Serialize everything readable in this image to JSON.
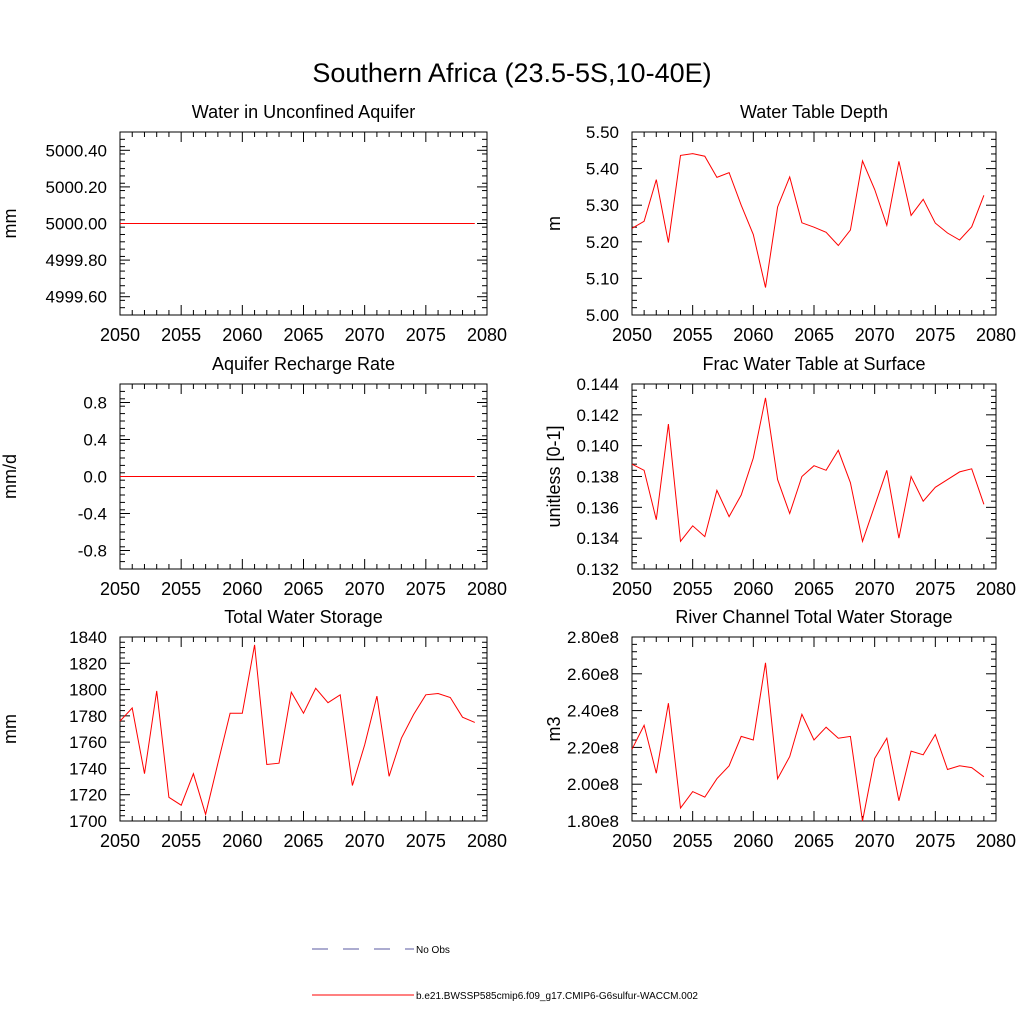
{
  "figure": {
    "title": "Southern Africa (23.5-5S,10-40E)"
  },
  "colors": {
    "model": "#ff0000",
    "obs": "#5a5aa0",
    "axis": "#000000"
  },
  "legend": {
    "placement": "bottom-center",
    "entries": [
      {
        "label": "No Obs",
        "style": "dashed",
        "color": "#5a5aa0"
      },
      {
        "label": "b.e21.BWSSP585cmip6.f09_g17.CMIP6-G6sulfur-WACCM.002",
        "style": "solid",
        "color": "#ff0000"
      }
    ]
  },
  "chart_data": [
    {
      "type": "line",
      "title": "Water in Unconfined Aquifer",
      "ylabel": "mm",
      "xlim": [
        2050,
        2080
      ],
      "ylim": [
        4999.5,
        5000.5
      ],
      "xticks": [
        2050,
        2055,
        2060,
        2065,
        2070,
        2075,
        2080
      ],
      "xtick_labels": [
        "2050",
        "2055",
        "2060",
        "2065",
        "2070",
        "2075",
        "2080"
      ],
      "yticks": [
        4999.6,
        4999.8,
        5000.0,
        5000.2,
        5000.4
      ],
      "ytick_labels": [
        "4999.60",
        "4999.80",
        "5000.00",
        "5000.20",
        "5000.40"
      ],
      "yminor": 0.04,
      "x": [
        2050,
        2051,
        2052,
        2053,
        2054,
        2055,
        2056,
        2057,
        2058,
        2059,
        2060,
        2061,
        2062,
        2063,
        2064,
        2065,
        2066,
        2067,
        2068,
        2069,
        2070,
        2071,
        2072,
        2073,
        2074,
        2075,
        2076,
        2077,
        2078,
        2079
      ],
      "values": [
        5000,
        5000,
        5000,
        5000,
        5000,
        5000,
        5000,
        5000,
        5000,
        5000,
        5000,
        5000,
        5000,
        5000,
        5000,
        5000,
        5000,
        5000,
        5000,
        5000,
        5000,
        5000,
        5000,
        5000,
        5000,
        5000,
        5000,
        5000,
        5000,
        5000
      ]
    },
    {
      "type": "line",
      "title": "Water Table Depth",
      "ylabel": "m",
      "xlim": [
        2050,
        2080
      ],
      "ylim": [
        5.0,
        5.5
      ],
      "xticks": [
        2050,
        2055,
        2060,
        2065,
        2070,
        2075,
        2080
      ],
      "xtick_labels": [
        "2050",
        "2055",
        "2060",
        "2065",
        "2070",
        "2075",
        "2080"
      ],
      "yticks": [
        5.0,
        5.1,
        5.2,
        5.3,
        5.4,
        5.5
      ],
      "ytick_labels": [
        "5.00",
        "5.10",
        "5.20",
        "5.30",
        "5.40",
        "5.50"
      ],
      "yminor": 0.02,
      "x": [
        2050,
        2051,
        2052,
        2053,
        2054,
        2055,
        2056,
        2057,
        2058,
        2059,
        2060,
        2061,
        2062,
        2063,
        2064,
        2065,
        2066,
        2067,
        2068,
        2069,
        2070,
        2071,
        2072,
        2073,
        2074,
        2075,
        2076,
        2077,
        2078,
        2079
      ],
      "values": [
        5.237,
        5.256,
        5.37,
        5.198,
        5.436,
        5.441,
        5.434,
        5.376,
        5.389,
        5.3,
        5.22,
        5.075,
        5.295,
        5.377,
        5.252,
        5.24,
        5.226,
        5.19,
        5.232,
        5.421,
        5.343,
        5.245,
        5.42,
        5.272,
        5.316,
        5.251,
        5.224,
        5.205,
        5.241,
        5.327
      ]
    },
    {
      "type": "line",
      "title": "Aquifer Recharge Rate",
      "ylabel": "mm/d",
      "xlim": [
        2050,
        2080
      ],
      "ylim": [
        -1.0,
        1.0
      ],
      "xticks": [
        2050,
        2055,
        2060,
        2065,
        2070,
        2075,
        2080
      ],
      "xtick_labels": [
        "2050",
        "2055",
        "2060",
        "2065",
        "2070",
        "2075",
        "2080"
      ],
      "yticks": [
        -0.8,
        -0.4,
        0.0,
        0.4,
        0.8
      ],
      "ytick_labels": [
        "-0.8",
        "-0.4",
        "0.0",
        "0.4",
        "0.8"
      ],
      "yminor": 0.08,
      "x": [
        2050,
        2051,
        2052,
        2053,
        2054,
        2055,
        2056,
        2057,
        2058,
        2059,
        2060,
        2061,
        2062,
        2063,
        2064,
        2065,
        2066,
        2067,
        2068,
        2069,
        2070,
        2071,
        2072,
        2073,
        2074,
        2075,
        2076,
        2077,
        2078,
        2079
      ],
      "values": [
        0,
        0,
        0,
        0,
        0,
        0,
        0,
        0,
        0,
        0,
        0,
        0,
        0,
        0,
        0,
        0,
        0,
        0,
        0,
        0,
        0,
        0,
        0,
        0,
        0,
        0,
        0,
        0,
        0,
        0
      ]
    },
    {
      "type": "line",
      "title": "Frac Water Table at Surface",
      "ylabel": "unitless [0-1]",
      "xlim": [
        2050,
        2080
      ],
      "ylim": [
        0.132,
        0.144
      ],
      "xticks": [
        2050,
        2055,
        2060,
        2065,
        2070,
        2075,
        2080
      ],
      "xtick_labels": [
        "2050",
        "2055",
        "2060",
        "2065",
        "2070",
        "2075",
        "2080"
      ],
      "yticks": [
        0.132,
        0.134,
        0.136,
        0.138,
        0.14,
        0.142,
        0.144
      ],
      "ytick_labels": [
        "0.132",
        "0.134",
        "0.136",
        "0.138",
        "0.140",
        "0.142",
        "0.144"
      ],
      "yminor": 0.0004,
      "x": [
        2050,
        2051,
        2052,
        2053,
        2054,
        2055,
        2056,
        2057,
        2058,
        2059,
        2060,
        2061,
        2062,
        2063,
        2064,
        2065,
        2066,
        2067,
        2068,
        2069,
        2070,
        2071,
        2072,
        2073,
        2074,
        2075,
        2076,
        2077,
        2078,
        2079
      ],
      "values": [
        0.1388,
        0.1384,
        0.1352,
        0.1414,
        0.1338,
        0.1348,
        0.1341,
        0.1371,
        0.1354,
        0.1368,
        0.1392,
        0.1431,
        0.1378,
        0.1356,
        0.138,
        0.1387,
        0.1384,
        0.1397,
        0.1376,
        0.1338,
        0.1361,
        0.1384,
        0.134,
        0.138,
        0.1364,
        0.1373,
        0.1378,
        0.1383,
        0.1385,
        0.1362
      ]
    },
    {
      "type": "line",
      "title": "Total Water Storage",
      "ylabel": "mm",
      "xlim": [
        2050,
        2080
      ],
      "ylim": [
        1700,
        1840
      ],
      "xticks": [
        2050,
        2055,
        2060,
        2065,
        2070,
        2075,
        2080
      ],
      "xtick_labels": [
        "2050",
        "2055",
        "2060",
        "2065",
        "2070",
        "2075",
        "2080"
      ],
      "yticks": [
        1700,
        1720,
        1740,
        1760,
        1780,
        1800,
        1820,
        1840
      ],
      "ytick_labels": [
        "1700",
        "1720",
        "1740",
        "1760",
        "1780",
        "1800",
        "1820",
        "1840"
      ],
      "yminor": 4,
      "x": [
        2050,
        2051,
        2052,
        2053,
        2054,
        2055,
        2056,
        2057,
        2058,
        2059,
        2060,
        2061,
        2062,
        2063,
        2064,
        2065,
        2066,
        2067,
        2068,
        2069,
        2070,
        2071,
        2072,
        2073,
        2074,
        2075,
        2076,
        2077,
        2078,
        2079
      ],
      "values": [
        1776,
        1786,
        1736,
        1799,
        1718,
        1712,
        1736,
        1705,
        1744,
        1782,
        1782,
        1834,
        1743,
        1744,
        1798,
        1782,
        1801,
        1790,
        1796,
        1727,
        1758,
        1795,
        1734,
        1763,
        1781,
        1796,
        1797,
        1794,
        1779,
        1775
      ]
    },
    {
      "type": "line",
      "title": "River Channel Total Water Storage",
      "ylabel": "m3",
      "xlim": [
        2050,
        2080
      ],
      "ylim": [
        180000000,
        280000000
      ],
      "xticks": [
        2050,
        2055,
        2060,
        2065,
        2070,
        2075,
        2080
      ],
      "xtick_labels": [
        "2050",
        "2055",
        "2060",
        "2065",
        "2070",
        "2075",
        "2080"
      ],
      "yticks": [
        180000000,
        200000000,
        220000000,
        240000000,
        260000000,
        280000000
      ],
      "ytick_labels": [
        "1.80e8",
        "2.00e8",
        "2.20e8",
        "2.40e8",
        "2.60e8",
        "2.80e8"
      ],
      "yminor": 4000000,
      "x": [
        2050,
        2051,
        2052,
        2053,
        2054,
        2055,
        2056,
        2057,
        2058,
        2059,
        2060,
        2061,
        2062,
        2063,
        2064,
        2065,
        2066,
        2067,
        2068,
        2069,
        2070,
        2071,
        2072,
        2073,
        2074,
        2075,
        2076,
        2077,
        2078,
        2079
      ],
      "values": [
        219000000,
        232000000,
        206000000,
        244000000,
        187000000,
        196000000,
        193000000,
        203000000,
        210000000,
        226000000,
        224000000,
        266000000,
        203000000,
        215000000,
        238000000,
        224000000,
        231000000,
        225000000,
        226000000,
        180000000,
        214000000,
        225000000,
        191000000,
        218000000,
        216000000,
        227000000,
        208000000,
        210000000,
        209000000,
        204000000
      ]
    }
  ]
}
